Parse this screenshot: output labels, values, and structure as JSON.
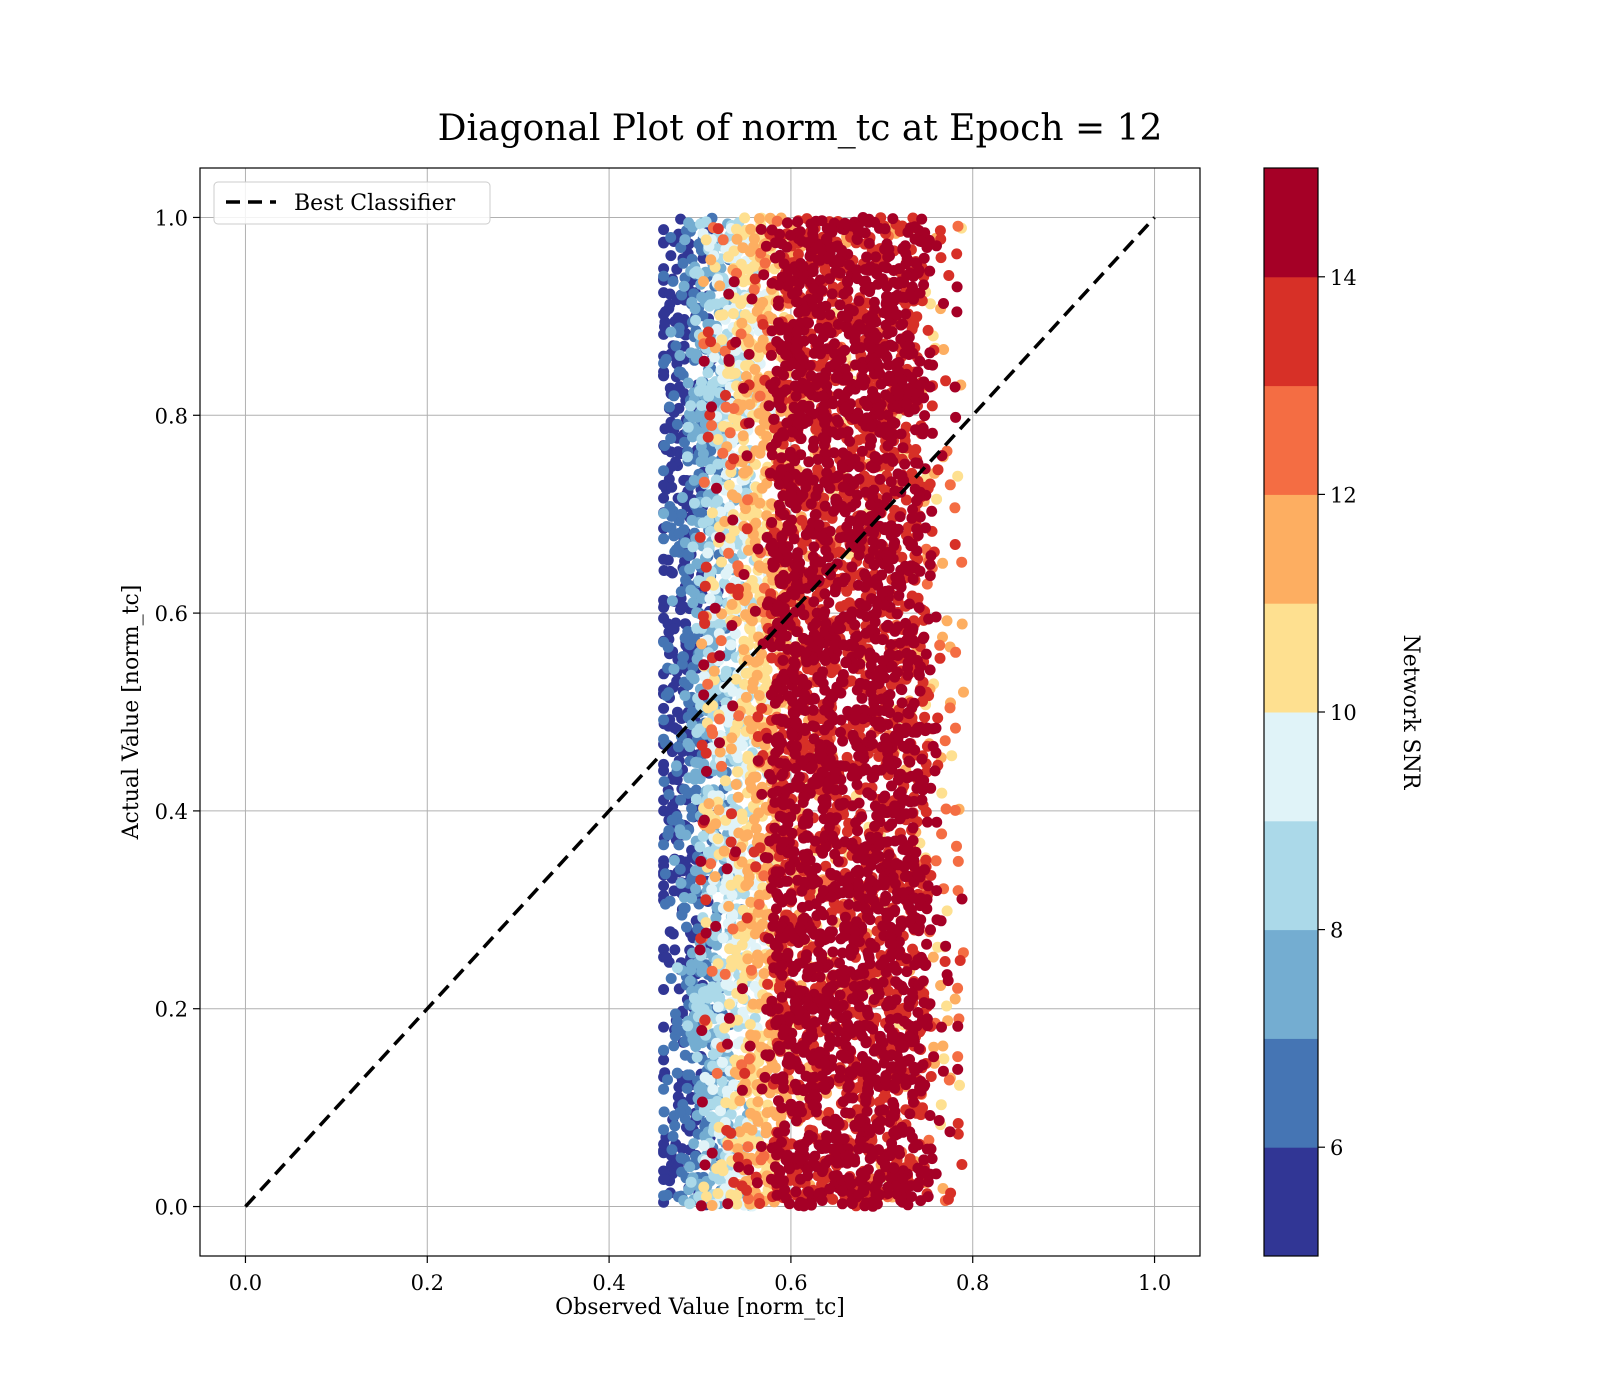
{
  "chart_data": {
    "type": "scatter",
    "title": "Diagonal Plot of norm_tc at Epoch = 12",
    "xlabel": "Observed Value [norm_tc]",
    "ylabel": "Actual Value [norm_tc]",
    "xlim": [
      -0.05,
      1.05
    ],
    "ylim": [
      -0.05,
      1.05
    ],
    "x_ticks": [
      "0.0",
      "0.2",
      "0.4",
      "0.6",
      "0.8",
      "1.0"
    ],
    "y_ticks": [
      "0.0",
      "0.2",
      "0.4",
      "0.6",
      "0.8",
      "1.0"
    ],
    "grid": true,
    "legend": {
      "position": "top-left",
      "entries": [
        "Best Classifier"
      ]
    },
    "reference_line": {
      "name": "Best Classifier",
      "style": "dashed",
      "color": "#000000",
      "x": [
        0,
        1
      ],
      "y": [
        0,
        1
      ]
    },
    "scatter_summary": {
      "y_range": [
        0.0,
        1.0
      ],
      "x_min": 0.46,
      "x_max": 0.8,
      "snr_gradient": "low SNR points near x=0.46-0.55, high SNR points dominate x=0.58-0.78"
    },
    "colorbar": {
      "label": "Network SNR",
      "range": [
        5,
        15
      ],
      "ticks": [
        "6",
        "8",
        "10",
        "12",
        "14"
      ],
      "tick_values": [
        6,
        8,
        10,
        12,
        14
      ],
      "levels": [
        5,
        6,
        7,
        8,
        9,
        10,
        11,
        12,
        13,
        14,
        15
      ],
      "colors": [
        "#313695",
        "#4575b4",
        "#74add1",
        "#abd9e9",
        "#e0f3f8",
        "#fee090",
        "#fdae61",
        "#f46d43",
        "#d73027",
        "#a50026"
      ]
    }
  }
}
